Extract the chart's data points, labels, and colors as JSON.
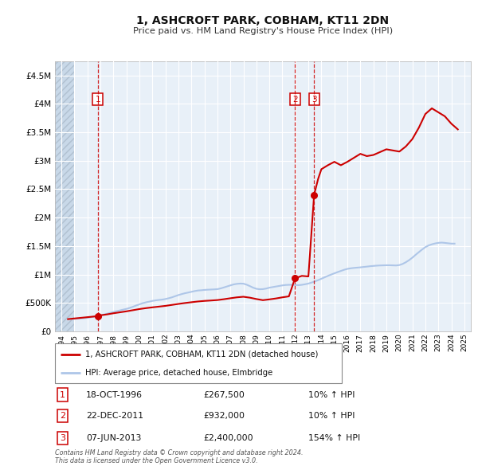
{
  "title": "1, ASHCROFT PARK, COBHAM, KT11 2DN",
  "subtitle": "Price paid vs. HM Land Registry's House Price Index (HPI)",
  "legend_line1": "1, ASHCROFT PARK, COBHAM, KT11 2DN (detached house)",
  "legend_line2": "HPI: Average price, detached house, Elmbridge",
  "transactions": [
    {
      "num": 1,
      "date": "18-OCT-1996",
      "year": 1996.79,
      "price": 267500,
      "pct": "10%",
      "dir": "↑"
    },
    {
      "num": 2,
      "date": "22-DEC-2011",
      "year": 2011.97,
      "price": 932000,
      "pct": "10%",
      "dir": "↑"
    },
    {
      "num": 3,
      "date": "07-JUN-2013",
      "year": 2013.44,
      "price": 2400000,
      "pct": "154%",
      "dir": "↑"
    }
  ],
  "hpi_color": "#aec6e8",
  "price_color": "#cc0000",
  "marker_color": "#cc0000",
  "vline_color": "#cc0000",
  "background_color": "#ffffff",
  "plot_bg_color": "#e8f0f8",
  "grid_color": "#ffffff",
  "hatch_color": "#c8d8e8",
  "footnote": "Contains HM Land Registry data © Crown copyright and database right 2024.\nThis data is licensed under the Open Government Licence v3.0.",
  "xlim": [
    1993.5,
    2025.5
  ],
  "ylim": [
    0,
    4750000
  ],
  "yticks": [
    0,
    500000,
    1000000,
    1500000,
    2000000,
    2500000,
    3000000,
    3500000,
    4000000,
    4500000
  ],
  "ytick_labels": [
    "£0",
    "£500K",
    "£1M",
    "£1.5M",
    "£2M",
    "£2.5M",
    "£3M",
    "£3.5M",
    "£4M",
    "£4.5M"
  ],
  "xticks": [
    1994,
    1995,
    1996,
    1997,
    1998,
    1999,
    2000,
    2001,
    2002,
    2003,
    2004,
    2005,
    2006,
    2007,
    2008,
    2009,
    2010,
    2011,
    2012,
    2013,
    2014,
    2015,
    2016,
    2017,
    2018,
    2019,
    2020,
    2021,
    2022,
    2023,
    2024,
    2025
  ],
  "hpi_x": [
    1995.0,
    1995.25,
    1995.5,
    1995.75,
    1996.0,
    1996.25,
    1996.5,
    1996.75,
    1997.0,
    1997.25,
    1997.5,
    1997.75,
    1998.0,
    1998.25,
    1998.5,
    1998.75,
    1999.0,
    1999.25,
    1999.5,
    1999.75,
    2000.0,
    2000.25,
    2000.5,
    2000.75,
    2001.0,
    2001.25,
    2001.5,
    2001.75,
    2002.0,
    2002.25,
    2002.5,
    2002.75,
    2003.0,
    2003.25,
    2003.5,
    2003.75,
    2004.0,
    2004.25,
    2004.5,
    2004.75,
    2005.0,
    2005.25,
    2005.5,
    2005.75,
    2006.0,
    2006.25,
    2006.5,
    2006.75,
    2007.0,
    2007.25,
    2007.5,
    2007.75,
    2008.0,
    2008.25,
    2008.5,
    2008.75,
    2009.0,
    2009.25,
    2009.5,
    2009.75,
    2010.0,
    2010.25,
    2010.5,
    2010.75,
    2011.0,
    2011.25,
    2011.5,
    2011.75,
    2012.0,
    2012.25,
    2012.5,
    2012.75,
    2013.0,
    2013.25,
    2013.5,
    2013.75,
    2014.0,
    2014.25,
    2014.5,
    2014.75,
    2015.0,
    2015.25,
    2015.5,
    2015.75,
    2016.0,
    2016.25,
    2016.5,
    2016.75,
    2017.0,
    2017.25,
    2017.5,
    2017.75,
    2018.0,
    2018.25,
    2018.5,
    2018.75,
    2019.0,
    2019.25,
    2019.5,
    2019.75,
    2020.0,
    2020.25,
    2020.5,
    2020.75,
    2021.0,
    2021.25,
    2021.5,
    2021.75,
    2022.0,
    2022.25,
    2022.5,
    2022.75,
    2023.0,
    2023.25,
    2023.5,
    2023.75,
    2024.0,
    2024.25
  ],
  "hpi_y": [
    220000,
    225000,
    228000,
    232000,
    240000,
    248000,
    258000,
    268000,
    280000,
    295000,
    310000,
    325000,
    340000,
    355000,
    368000,
    382000,
    395000,
    412000,
    432000,
    455000,
    475000,
    495000,
    510000,
    522000,
    535000,
    545000,
    552000,
    558000,
    568000,
    582000,
    598000,
    618000,
    638000,
    655000,
    670000,
    682000,
    695000,
    708000,
    718000,
    722000,
    728000,
    732000,
    735000,
    738000,
    742000,
    755000,
    772000,
    790000,
    808000,
    825000,
    835000,
    840000,
    838000,
    820000,
    795000,
    768000,
    748000,
    740000,
    742000,
    752000,
    768000,
    778000,
    788000,
    798000,
    808000,
    815000,
    818000,
    818000,
    815000,
    812000,
    818000,
    828000,
    840000,
    858000,
    878000,
    900000,
    925000,
    950000,
    975000,
    998000,
    1020000,
    1042000,
    1062000,
    1082000,
    1098000,
    1108000,
    1115000,
    1120000,
    1125000,
    1132000,
    1138000,
    1145000,
    1150000,
    1155000,
    1158000,
    1160000,
    1162000,
    1162000,
    1160000,
    1158000,
    1165000,
    1185000,
    1215000,
    1252000,
    1295000,
    1345000,
    1392000,
    1438000,
    1480000,
    1510000,
    1530000,
    1545000,
    1555000,
    1560000,
    1555000,
    1548000,
    1542000,
    1542000
  ],
  "price_x": [
    1994.5,
    1996.79,
    1997.0,
    1997.5,
    1998.0,
    1998.5,
    1999.0,
    1999.5,
    2000.0,
    2000.5,
    2001.0,
    2001.5,
    2002.0,
    2002.5,
    2003.0,
    2003.5,
    2004.0,
    2004.5,
    2005.0,
    2005.5,
    2006.0,
    2006.5,
    2007.0,
    2007.5,
    2008.0,
    2008.5,
    2009.0,
    2009.5,
    2010.0,
    2010.5,
    2011.0,
    2011.5,
    2011.97,
    2012.5,
    2013.0,
    2013.44,
    2013.75,
    2014.0,
    2014.5,
    2015.0,
    2015.5,
    2016.0,
    2016.5,
    2017.0,
    2017.5,
    2018.0,
    2018.5,
    2019.0,
    2019.5,
    2020.0,
    2020.5,
    2021.0,
    2021.5,
    2022.0,
    2022.5,
    2023.0,
    2023.5,
    2024.0,
    2024.5
  ],
  "price_y": [
    215000,
    267500,
    282000,
    298000,
    318000,
    335000,
    352000,
    372000,
    392000,
    408000,
    422000,
    435000,
    448000,
    465000,
    482000,
    498000,
    512000,
    525000,
    535000,
    542000,
    550000,
    565000,
    582000,
    598000,
    608000,
    592000,
    568000,
    548000,
    562000,
    578000,
    598000,
    615000,
    932000,
    975000,
    965000,
    2400000,
    2680000,
    2850000,
    2920000,
    2980000,
    2920000,
    2980000,
    3050000,
    3120000,
    3080000,
    3100000,
    3150000,
    3200000,
    3180000,
    3160000,
    3250000,
    3380000,
    3580000,
    3820000,
    3920000,
    3850000,
    3780000,
    3650000,
    3550000
  ],
  "table_rows": [
    {
      "num": 1,
      "date": "18-OCT-1996",
      "price": "£267,500",
      "pct": "10% ↑ HPI"
    },
    {
      "num": 2,
      "date": "22-DEC-2011",
      "price": "£932,000",
      "pct": "10% ↑ HPI"
    },
    {
      "num": 3,
      "date": "07-JUN-2013",
      "price": "£2,400,000",
      "pct": "154% ↑ HPI"
    }
  ]
}
